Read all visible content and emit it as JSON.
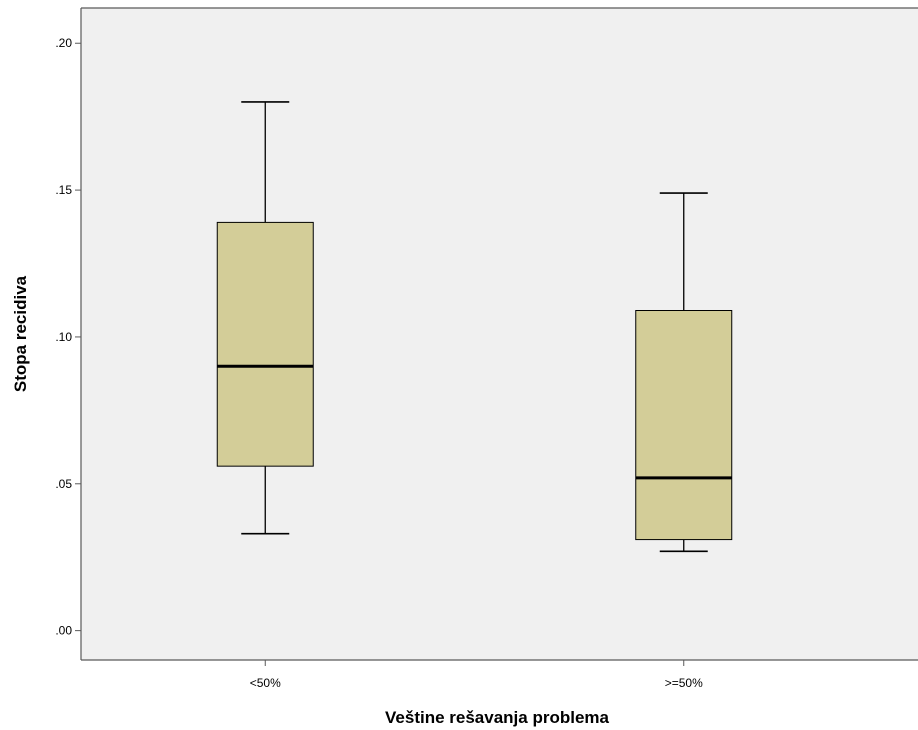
{
  "chart_data": {
    "type": "boxplot",
    "title": "",
    "xlabel": "Veštine rešavanja problema",
    "ylabel": "Stopa recidiva",
    "ylim": [
      -0.01,
      0.212
    ],
    "yticks": [
      0.0,
      0.05,
      0.1,
      0.15,
      0.2
    ],
    "ytick_labels": [
      ".00",
      ".05",
      ".10",
      ".15",
      ".20"
    ],
    "grid": false,
    "categories": [
      "<50%",
      ">=50%"
    ],
    "boxes": [
      {
        "category": "<50%",
        "min": 0.033,
        "q1": 0.056,
        "median": 0.09,
        "q3": 0.139,
        "max": 0.18
      },
      {
        "category": ">=50%",
        "min": 0.027,
        "q1": 0.031,
        "median": 0.052,
        "q3": 0.109,
        "max": 0.149
      }
    ],
    "colors": {
      "box_fill": "#d3cd98",
      "plot_background": "#f0f0f0",
      "stroke": "#000000",
      "axis": "#595959"
    }
  }
}
